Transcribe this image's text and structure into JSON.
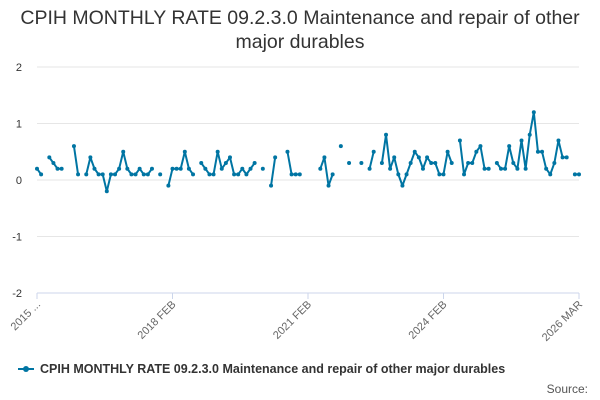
{
  "colors": {
    "series": "#0075a3",
    "grid": "#e6e6e6",
    "axis": "#ccd6eb"
  },
  "legend": {
    "label": "CPIH MONTHLY RATE 09.2.3.0 Maintenance and repair of other major durables"
  },
  "source": {
    "label": "Source:"
  },
  "chart_data": {
    "type": "line",
    "title": "CPIH MONTHLY RATE 09.2.3.0 Maintenance and repair of other major durables",
    "xlabel": "",
    "ylabel": "",
    "ylim": [
      -2,
      2
    ],
    "yticks": [
      -2,
      -1,
      0,
      1,
      2
    ],
    "x_tick_labels": [
      "2015 ...",
      "2018 FEB",
      "2021 FEB",
      "2024 FEB",
      "2026 MAR"
    ],
    "legend_position": "bottom-left",
    "grid": true,
    "series": [
      {
        "name": "CPIH MONTHLY RATE 09.2.3.0 Maintenance and repair of other major durables",
        "values": [
          0.2,
          0.1,
          null,
          0.4,
          0.3,
          0.2,
          0.2,
          null,
          null,
          0.6,
          0.1,
          null,
          0.1,
          0.4,
          0.2,
          0.1,
          0.1,
          -0.2,
          0.1,
          0.1,
          0.2,
          0.5,
          0.2,
          0.1,
          0.1,
          0.2,
          0.1,
          0.1,
          0.2,
          null,
          0.1,
          null,
          -0.1,
          0.2,
          0.2,
          0.2,
          0.5,
          0.2,
          0.1,
          null,
          0.3,
          0.2,
          0.1,
          0.1,
          0.5,
          0.2,
          0.3,
          0.4,
          0.1,
          0.1,
          0.2,
          0.1,
          0.2,
          0.3,
          null,
          0.2,
          null,
          -0.1,
          0.4,
          null,
          null,
          0.5,
          0.1,
          0.1,
          0.1,
          null,
          null,
          null,
          null,
          0.2,
          0.4,
          -0.1,
          0.1,
          null,
          0.6,
          null,
          0.3,
          null,
          null,
          0.3,
          null,
          0.2,
          0.5,
          null,
          0.3,
          0.8,
          0.2,
          0.4,
          0.1,
          -0.1,
          0.1,
          0.3,
          0.5,
          0.4,
          0.2,
          0.4,
          0.3,
          0.3,
          0.1,
          0.1,
          0.5,
          0.3,
          null,
          0.7,
          0.1,
          0.3,
          0.3,
          0.5,
          0.6,
          0.2,
          0.2,
          null,
          0.3,
          0.2,
          0.2,
          0.6,
          0.3,
          0.2,
          0.7,
          0.2,
          0.8,
          1.2,
          0.5,
          0.5,
          0.2,
          0.1,
          0.3,
          0.7,
          0.4,
          0.4,
          null,
          0.1,
          0.1
        ]
      }
    ]
  }
}
